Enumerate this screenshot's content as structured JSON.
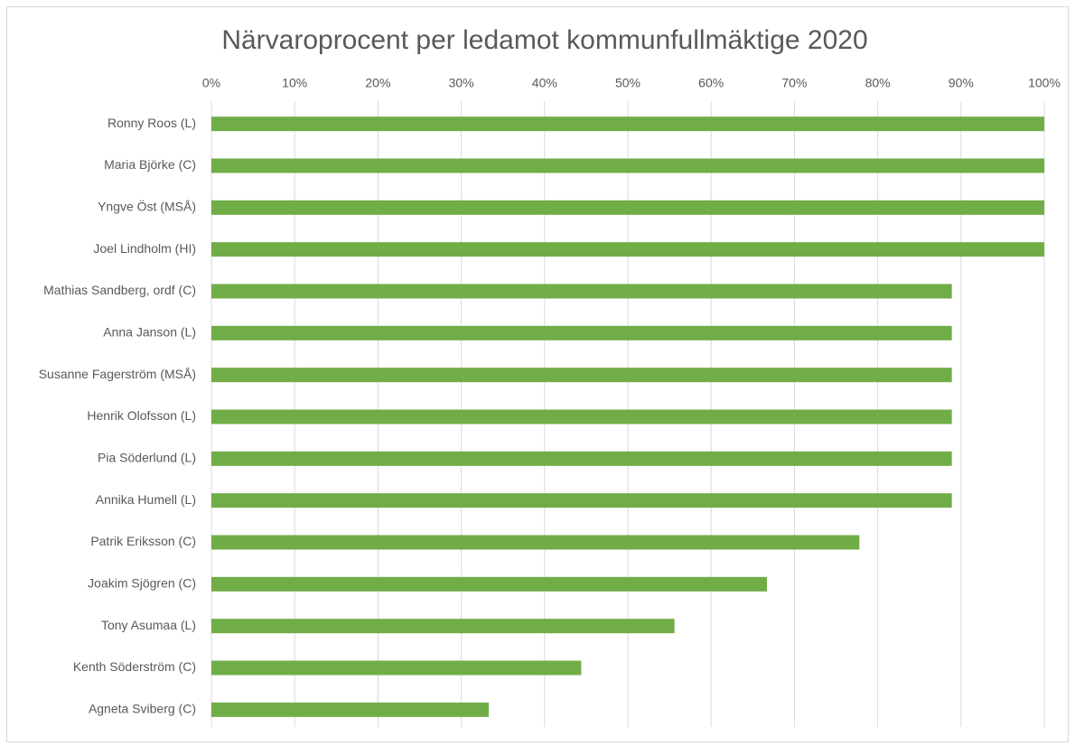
{
  "chart_data": {
    "type": "bar",
    "orientation": "horizontal",
    "title": "Närvaroprocent per ledamot kommunfullmäktige 2020",
    "categories": [
      "Ronny Roos (L)",
      "Maria Björke (C)",
      "Yngve Öst (MSÅ)",
      "Joel Lindholm (HI)",
      "Mathias Sandberg, ordf (C)",
      "Anna Janson (L)",
      "Susanne Fagerström (MSÅ)",
      "Henrik Olofsson (L)",
      "Pia Söderlund (L)",
      "Annika Humell (L)",
      "Patrik Eriksson (C)",
      "Joakim Sjögren (C)",
      "Tony Asumaa (L)",
      "Kenth Söderström (C)",
      "Agneta Sviberg (C)"
    ],
    "values": [
      100,
      100,
      100,
      100,
      88.9,
      88.9,
      88.9,
      88.9,
      88.9,
      88.9,
      77.8,
      66.7,
      55.6,
      44.4,
      33.3
    ],
    "color": "#70ad47",
    "xlim": [
      0,
      100
    ],
    "xticks": [
      {
        "value": 0,
        "label": "0%"
      },
      {
        "value": 10,
        "label": "10%"
      },
      {
        "value": 20,
        "label": "20%"
      },
      {
        "value": 30,
        "label": "30%"
      },
      {
        "value": 40,
        "label": "40%"
      },
      {
        "value": 50,
        "label": "50%"
      },
      {
        "value": 60,
        "label": "60%"
      },
      {
        "value": 70,
        "label": "70%"
      },
      {
        "value": 80,
        "label": "80%"
      },
      {
        "value": 90,
        "label": "90%"
      },
      {
        "value": 100,
        "label": "100%"
      }
    ],
    "grid": true
  }
}
